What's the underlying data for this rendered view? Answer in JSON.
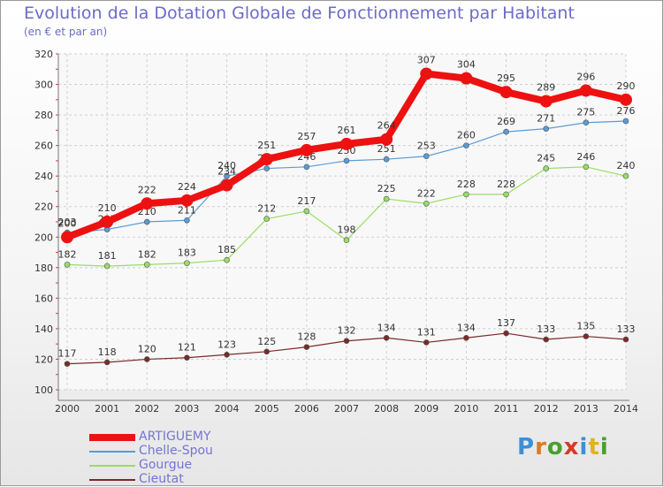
{
  "header": {
    "title": "Evolution de la Dotation Globale de Fonctionnement par Habitant",
    "subtitle": "(en € et par an)"
  },
  "brand": {
    "letters": [
      "P",
      "r",
      "o",
      "x",
      "i",
      "t",
      "i"
    ],
    "colors": [
      "#3d8fd6",
      "#e07a1e",
      "#48a02c",
      "#d23a2a",
      "#3d8fd6",
      "#e0b21e",
      "#48a02c"
    ]
  },
  "chart_data": {
    "type": "line",
    "title": "Evolution de la Dotation Globale de Fonctionnement par Habitant",
    "subtitle": "(en € et par an)",
    "xlabel": "",
    "ylabel": "",
    "x": [
      "2000",
      "2001",
      "2002",
      "2003",
      "2004",
      "2005",
      "2006",
      "2007",
      "2008",
      "2009",
      "2010",
      "2011",
      "2012",
      "2013",
      "2014"
    ],
    "ylim": [
      100,
      320
    ],
    "yticks": [
      100,
      120,
      140,
      160,
      180,
      200,
      220,
      240,
      260,
      280,
      300,
      320
    ],
    "grid": true,
    "legend_position": "bottom-left",
    "series": [
      {
        "name": "ARTIGUEMY",
        "color": "#ee1111",
        "values": [
          200,
          210,
          222,
          224,
          234,
          251,
          257,
          261,
          264,
          307,
          304,
          295,
          289,
          296,
          290
        ]
      },
      {
        "name": "Chelle-Spou",
        "color": "#5b9bd5",
        "values": [
          203,
          205,
          210,
          211,
          240,
          245,
          246,
          250,
          251,
          253,
          260,
          269,
          271,
          275,
          276
        ]
      },
      {
        "name": "Gourgue",
        "color": "#99dd66",
        "values": [
          182,
          181,
          182,
          183,
          185,
          212,
          217,
          198,
          225,
          222,
          228,
          228,
          245,
          246,
          240
        ]
      },
      {
        "name": "Cieutat",
        "color": "#7a2a2a",
        "values": [
          117,
          118,
          120,
          121,
          123,
          125,
          128,
          132,
          134,
          131,
          134,
          137,
          133,
          135,
          133
        ]
      }
    ]
  }
}
